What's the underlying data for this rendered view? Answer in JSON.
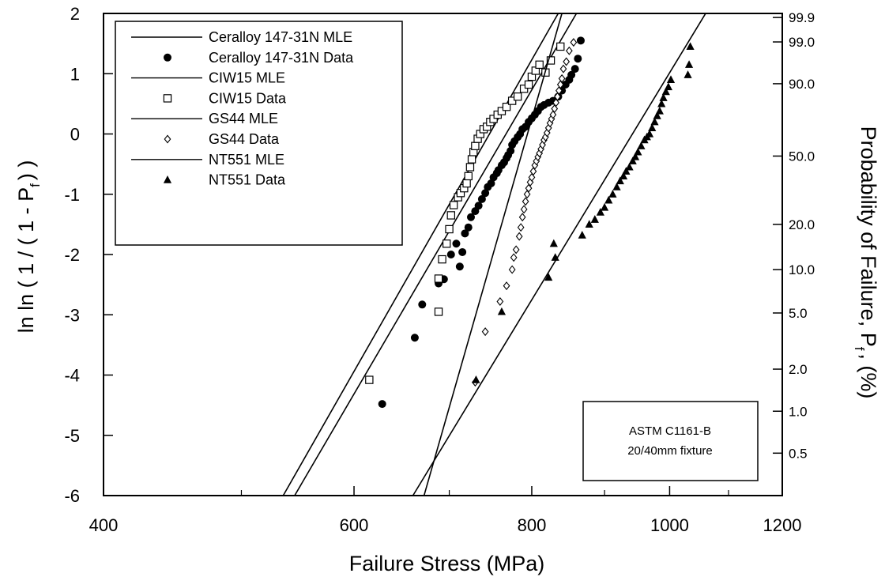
{
  "chart_data": {
    "type": "scatter",
    "xlabel": "Failure Stress (MPa)",
    "ylabel": "ln ln ( 1 / ( 1 - P",
    "ylabel_sub": "f",
    "ylabel_end": ") )",
    "y2label": "Probability of Failure, P",
    "y2label_sub": "f",
    "y2label_end": ", (%)",
    "x_scale": "log",
    "xlim": [
      400,
      1200
    ],
    "ylim": [
      -6,
      2
    ],
    "x_ticks": [
      400,
      600,
      800,
      1000,
      1200
    ],
    "x_minor_ticks": [
      500,
      700,
      900,
      1100
    ],
    "y_ticks": [
      -6,
      -5,
      -4,
      -3,
      -2,
      -1,
      0,
      1,
      2
    ],
    "y2_ticks": [
      {
        "label": "99.9",
        "percent": 99.9
      },
      {
        "label": "99.0",
        "percent": 99.0
      },
      {
        "label": "90.0",
        "percent": 90.0
      },
      {
        "label": "50.0",
        "percent": 50.0
      },
      {
        "label": "20.0",
        "percent": 20.0
      },
      {
        "label": "10.0",
        "percent": 10.0
      },
      {
        "label": "5.0",
        "percent": 5.0
      },
      {
        "label": "2.0",
        "percent": 2.0
      },
      {
        "label": "1.0",
        "percent": 1.0
      },
      {
        "label": "0.5",
        "percent": 0.5
      }
    ],
    "grid": false,
    "legend_position": "top-left",
    "annotation": [
      "ASTM C1161-B",
      "20/40mm fixture"
    ],
    "series": [
      {
        "name": "Ceralloy 147-31N MLE",
        "kind": "line",
        "marker": "none",
        "points": [
          [
            545,
            -6
          ],
          [
            860,
            2
          ]
        ]
      },
      {
        "name": "Ceralloy 147-31N Data",
        "kind": "points",
        "marker": "filled-circle",
        "points": [
          [
            628,
            -4.48
          ],
          [
            662,
            -3.38
          ],
          [
            670,
            -2.83
          ],
          [
            688,
            -2.48
          ],
          [
            694,
            -2.41
          ],
          [
            702,
            -2.0
          ],
          [
            708,
            -1.82
          ],
          [
            712,
            -2.2
          ],
          [
            715,
            -1.96
          ],
          [
            718,
            -1.65
          ],
          [
            722,
            -1.55
          ],
          [
            725,
            -1.38
          ],
          [
            730,
            -1.28
          ],
          [
            734,
            -1.19
          ],
          [
            738,
            -1.08
          ],
          [
            742,
            -0.98
          ],
          [
            745,
            -0.88
          ],
          [
            749,
            -0.82
          ],
          [
            752,
            -0.72
          ],
          [
            756,
            -0.65
          ],
          [
            758,
            -0.6
          ],
          [
            762,
            -0.52
          ],
          [
            765,
            -0.47
          ],
          [
            768,
            -0.4
          ],
          [
            770,
            -0.35
          ],
          [
            773,
            -0.28
          ],
          [
            775,
            -0.18
          ],
          [
            778,
            -0.12
          ],
          [
            782,
            -0.05
          ],
          [
            785,
            0.0
          ],
          [
            788,
            0.08
          ],
          [
            792,
            0.12
          ],
          [
            796,
            0.2
          ],
          [
            800,
            0.26
          ],
          [
            804,
            0.32
          ],
          [
            808,
            0.38
          ],
          [
            812,
            0.45
          ],
          [
            816,
            0.48
          ],
          [
            822,
            0.52
          ],
          [
            828,
            0.55
          ],
          [
            835,
            0.62
          ],
          [
            840,
            0.72
          ],
          [
            845,
            0.82
          ],
          [
            850,
            0.9
          ],
          [
            853,
            0.98
          ],
          [
            858,
            1.08
          ],
          [
            862,
            1.25
          ],
          [
            866,
            1.55
          ]
        ]
      },
      {
        "name": "CIW15 MLE",
        "kind": "line",
        "marker": "none",
        "points": [
          [
            535,
            -6
          ],
          [
            835,
            2
          ]
        ]
      },
      {
        "name": "CIW15 Data",
        "kind": "points",
        "marker": "open-square",
        "points": [
          [
            615,
            -4.08
          ],
          [
            688,
            -2.95
          ],
          [
            688,
            -2.4
          ],
          [
            692,
            -2.08
          ],
          [
            697,
            -1.82
          ],
          [
            700,
            -1.58
          ],
          [
            702,
            -1.35
          ],
          [
            705,
            -1.18
          ],
          [
            710,
            -1.05
          ],
          [
            713,
            -0.98
          ],
          [
            717,
            -0.9
          ],
          [
            720,
            -0.82
          ],
          [
            722,
            -0.7
          ],
          [
            724,
            -0.55
          ],
          [
            726,
            -0.42
          ],
          [
            728,
            -0.3
          ],
          [
            730,
            -0.2
          ],
          [
            733,
            -0.08
          ],
          [
            736,
            0.0
          ],
          [
            740,
            0.08
          ],
          [
            744,
            0.12
          ],
          [
            748,
            0.2
          ],
          [
            752,
            0.25
          ],
          [
            757,
            0.32
          ],
          [
            762,
            0.38
          ],
          [
            768,
            0.45
          ],
          [
            775,
            0.55
          ],
          [
            782,
            0.62
          ],
          [
            790,
            0.75
          ],
          [
            796,
            0.82
          ],
          [
            800,
            0.95
          ],
          [
            805,
            1.05
          ],
          [
            810,
            1.15
          ],
          [
            818,
            1.02
          ],
          [
            825,
            1.22
          ],
          [
            838,
            1.45
          ]
        ]
      },
      {
        "name": "GS44 MLE",
        "kind": "line",
        "marker": "none",
        "points": [
          [
            672,
            -6
          ],
          [
            840,
            2
          ]
        ]
      },
      {
        "name": "GS44 Data",
        "kind": "points",
        "marker": "open-diamond",
        "points": [
          [
            730,
            -4.12
          ],
          [
            742,
            -3.28
          ],
          [
            760,
            -2.78
          ],
          [
            768,
            -2.52
          ],
          [
            775,
            -2.25
          ],
          [
            777,
            -2.05
          ],
          [
            780,
            -1.92
          ],
          [
            784,
            -1.7
          ],
          [
            786,
            -1.55
          ],
          [
            788,
            -1.38
          ],
          [
            790,
            -1.25
          ],
          [
            792,
            -1.12
          ],
          [
            794,
            -1.0
          ],
          [
            796,
            -0.9
          ],
          [
            798,
            -0.8
          ],
          [
            800,
            -0.72
          ],
          [
            802,
            -0.62
          ],
          [
            804,
            -0.52
          ],
          [
            806,
            -0.45
          ],
          [
            808,
            -0.38
          ],
          [
            810,
            -0.32
          ],
          [
            812,
            -0.25
          ],
          [
            814,
            -0.18
          ],
          [
            816,
            -0.1
          ],
          [
            818,
            -0.05
          ],
          [
            820,
            0.02
          ],
          [
            822,
            0.1
          ],
          [
            824,
            0.18
          ],
          [
            826,
            0.25
          ],
          [
            828,
            0.32
          ],
          [
            830,
            0.42
          ],
          [
            832,
            0.52
          ],
          [
            834,
            0.62
          ],
          [
            836,
            0.72
          ],
          [
            838,
            0.82
          ],
          [
            840,
            0.92
          ],
          [
            842,
            1.08
          ],
          [
            846,
            1.2
          ],
          [
            850,
            1.38
          ],
          [
            856,
            1.52
          ]
        ]
      },
      {
        "name": "NT551 MLE",
        "kind": "line",
        "marker": "none",
        "points": [
          [
            660,
            -6
          ],
          [
            1060,
            2
          ]
        ]
      },
      {
        "name": "NT551 Data",
        "kind": "points",
        "marker": "filled-triangle",
        "points": [
          [
            731,
            -4.08
          ],
          [
            762,
            -2.95
          ],
          [
            822,
            -2.38
          ],
          [
            829,
            -1.82
          ],
          [
            831,
            -2.05
          ],
          [
            868,
            -1.68
          ],
          [
            878,
            -1.5
          ],
          [
            886,
            -1.42
          ],
          [
            894,
            -1.3
          ],
          [
            900,
            -1.22
          ],
          [
            906,
            -1.1
          ],
          [
            912,
            -1.0
          ],
          [
            918,
            -0.88
          ],
          [
            923,
            -0.78
          ],
          [
            928,
            -0.7
          ],
          [
            932,
            -0.62
          ],
          [
            937,
            -0.55
          ],
          [
            942,
            -0.45
          ],
          [
            946,
            -0.38
          ],
          [
            950,
            -0.3
          ],
          [
            955,
            -0.2
          ],
          [
            960,
            -0.1
          ],
          [
            964,
            -0.05
          ],
          [
            968,
            0.0
          ],
          [
            972,
            0.1
          ],
          [
            976,
            0.2
          ],
          [
            980,
            0.3
          ],
          [
            984,
            0.38
          ],
          [
            987,
            0.5
          ],
          [
            990,
            0.6
          ],
          [
            994,
            0.7
          ],
          [
            998,
            0.78
          ],
          [
            1002,
            0.9
          ],
          [
            1030,
            0.98
          ],
          [
            1032,
            1.15
          ],
          [
            1034,
            1.45
          ]
        ]
      }
    ]
  }
}
